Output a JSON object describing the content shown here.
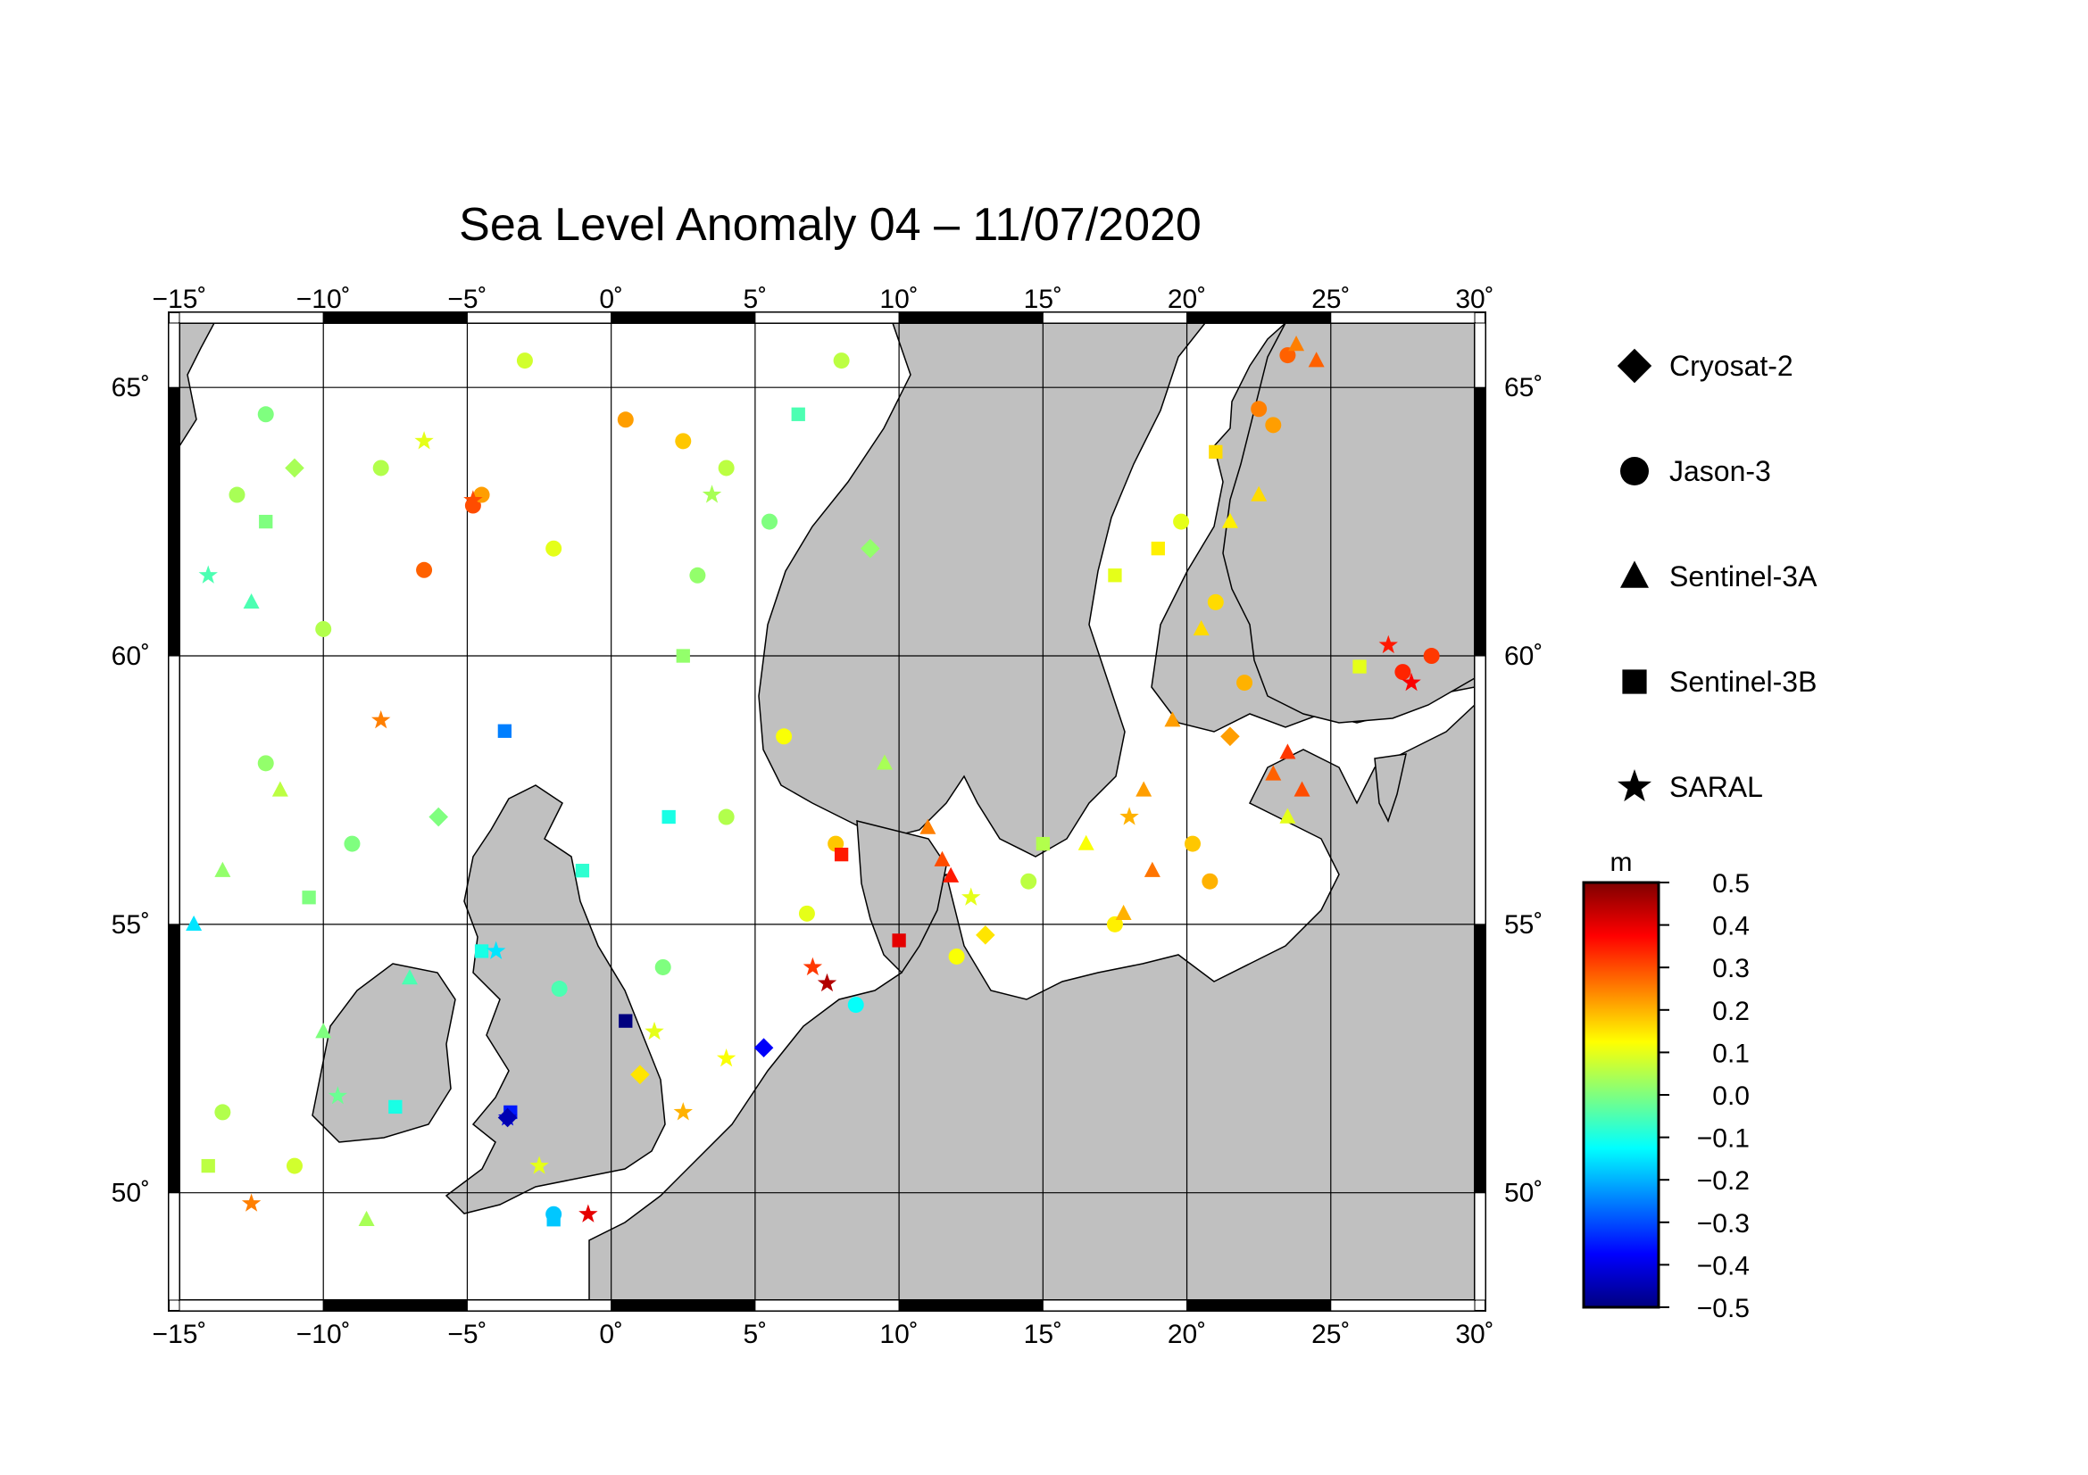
{
  "title": "Sea Level Anomaly 04 – 11/07/2020",
  "map": {
    "lon_range": [
      -15,
      30
    ],
    "lat_range": [
      48,
      66.2
    ],
    "lon_ticks": [
      -15,
      -10,
      -5,
      0,
      5,
      10,
      15,
      20,
      25,
      30
    ],
    "lat_ticks": [
      50,
      55,
      60,
      65
    ],
    "lon_tick_labels": [
      "−15˚",
      "−10˚",
      "−5˚",
      "0˚",
      "5˚",
      "10˚",
      "15˚",
      "20˚",
      "25˚",
      "30˚"
    ],
    "lat_tick_labels": [
      "50˚",
      "55˚",
      "60˚",
      "65˚"
    ],
    "grid": true,
    "land_color": "#c0c0c0",
    "sea_color": "#ffffff"
  },
  "legend": {
    "placement": "right",
    "items": [
      {
        "label": "Cryosat-2",
        "shape": "diamond"
      },
      {
        "label": "Jason-3",
        "shape": "circle"
      },
      {
        "label": "Sentinel-3A",
        "shape": "triangle"
      },
      {
        "label": "Sentinel-3B",
        "shape": "square"
      },
      {
        "label": "SARAL",
        "shape": "star"
      }
    ]
  },
  "colorbar": {
    "unit": "m",
    "min": -0.5,
    "max": 0.5,
    "ticks": [
      0.5,
      0.4,
      0.3,
      0.2,
      0.1,
      0.0,
      -0.1,
      -0.2,
      -0.3,
      -0.4,
      -0.5
    ],
    "tick_labels": [
      "0.5",
      "0.4",
      "0.3",
      "0.2",
      "0.1",
      "0.0",
      "−0.1",
      "−0.2",
      "−0.3",
      "−0.4",
      "−0.5"
    ],
    "colors": [
      "#00007f",
      "#0000ff",
      "#007fff",
      "#00ffff",
      "#7fff7f",
      "#ffff00",
      "#ff7f00",
      "#ff0000",
      "#7f0000"
    ]
  },
  "chart_data": {
    "type": "scatter",
    "title": "Sea Level Anomaly 04 – 11/07/2020",
    "xlabel": "",
    "ylabel": "",
    "xlim": [
      -15,
      30
    ],
    "ylim": [
      48,
      66.2
    ],
    "series": [
      {
        "name": "Jason-3",
        "shape": "circle",
        "points": [
          [
            -4.8,
            62.8,
            0.3
          ],
          [
            -4.5,
            63.0,
            0.22
          ],
          [
            -6.5,
            61.6,
            0.28
          ],
          [
            0.5,
            64.4,
            0.22
          ],
          [
            2.5,
            64.0,
            0.18
          ],
          [
            -12.0,
            64.5,
            0.0
          ],
          [
            -8.0,
            63.5,
            0.05
          ],
          [
            -2.0,
            62.0,
            0.1
          ],
          [
            3.0,
            61.5,
            0.02
          ],
          [
            -10.0,
            60.5,
            0.05
          ],
          [
            -13.0,
            63.0,
            0.04
          ],
          [
            4.0,
            63.5,
            0.06
          ],
          [
            5.5,
            62.5,
            0.0
          ],
          [
            -3.0,
            65.5,
            0.08
          ],
          [
            8.0,
            65.5,
            0.06
          ],
          [
            8.5,
            53.5,
            -0.12
          ],
          [
            27.5,
            59.7,
            0.34
          ],
          [
            28.5,
            60.0,
            0.32
          ],
          [
            23.5,
            65.6,
            0.28
          ],
          [
            23.0,
            64.3,
            0.22
          ],
          [
            22.5,
            64.6,
            0.25
          ],
          [
            19.8,
            62.5,
            0.1
          ],
          [
            21.0,
            61.0,
            0.16
          ],
          [
            22.0,
            59.5,
            0.2
          ],
          [
            20.2,
            56.5,
            0.18
          ],
          [
            20.8,
            55.8,
            0.2
          ],
          [
            17.5,
            55.0,
            0.14
          ],
          [
            12.0,
            54.4,
            0.12
          ],
          [
            -2.0,
            49.6,
            -0.18
          ],
          [
            -1.8,
            53.8,
            -0.05
          ],
          [
            1.8,
            54.2,
            0.0
          ],
          [
            -9.0,
            56.5,
            0.0
          ],
          [
            -12.0,
            58.0,
            0.02
          ],
          [
            4.0,
            57.0,
            0.05
          ],
          [
            6.0,
            58.5,
            0.12
          ],
          [
            -13.5,
            51.5,
            0.05
          ],
          [
            -11.0,
            50.5,
            0.08
          ],
          [
            7.8,
            56.5,
            0.18
          ],
          [
            6.8,
            55.2,
            0.1
          ],
          [
            14.5,
            55.8,
            0.06
          ]
        ]
      },
      {
        "name": "Sentinel-3A",
        "shape": "triangle",
        "points": [
          [
            11.5,
            56.2,
            0.3
          ],
          [
            11.0,
            56.8,
            0.25
          ],
          [
            11.8,
            55.9,
            0.35
          ],
          [
            23.5,
            58.2,
            0.32
          ],
          [
            23.0,
            57.8,
            0.28
          ],
          [
            24.0,
            57.5,
            0.3
          ],
          [
            23.5,
            57.0,
            0.1
          ],
          [
            24.5,
            65.5,
            0.28
          ],
          [
            23.8,
            65.8,
            0.25
          ],
          [
            18.5,
            57.5,
            0.22
          ],
          [
            18.8,
            56.0,
            0.26
          ],
          [
            17.8,
            55.2,
            0.2
          ],
          [
            19.5,
            58.8,
            0.22
          ],
          [
            21.5,
            62.5,
            0.14
          ],
          [
            -14.5,
            55.0,
            -0.15
          ],
          [
            -7.0,
            54.0,
            -0.05
          ],
          [
            -10.0,
            53.0,
            0.0
          ],
          [
            -12.5,
            61.0,
            -0.05
          ],
          [
            -13.5,
            56.0,
            0.02
          ],
          [
            9.5,
            58.0,
            0.04
          ],
          [
            16.5,
            56.5,
            0.12
          ],
          [
            20.5,
            60.5,
            0.16
          ],
          [
            22.5,
            63.0,
            0.16
          ],
          [
            -11.5,
            57.5,
            0.06
          ],
          [
            -8.5,
            49.5,
            0.04
          ]
        ]
      },
      {
        "name": "Sentinel-3B",
        "shape": "square",
        "points": [
          [
            -3.7,
            58.6,
            -0.25
          ],
          [
            -2.0,
            49.5,
            -0.18
          ],
          [
            0.5,
            53.2,
            -0.5
          ],
          [
            10.0,
            54.7,
            0.4
          ],
          [
            8.0,
            56.3,
            0.35
          ],
          [
            -3.5,
            51.5,
            -0.35
          ],
          [
            -7.5,
            51.6,
            -0.1
          ],
          [
            -12.0,
            62.5,
            0.0
          ],
          [
            2.0,
            57.0,
            -0.1
          ],
          [
            -1.0,
            56.0,
            -0.08
          ],
          [
            6.5,
            64.5,
            -0.05
          ],
          [
            2.5,
            60.0,
            0.02
          ],
          [
            -4.5,
            54.5,
            -0.1
          ],
          [
            15.0,
            56.5,
            0.05
          ],
          [
            17.5,
            61.5,
            0.1
          ],
          [
            21.0,
            63.8,
            0.16
          ],
          [
            19.0,
            62.0,
            0.14
          ],
          [
            26.0,
            59.8,
            0.1
          ],
          [
            -14.0,
            50.5,
            0.06
          ],
          [
            -10.5,
            55.5,
            0.0
          ]
        ]
      },
      {
        "name": "SARAL",
        "shape": "star",
        "points": [
          [
            -0.8,
            49.6,
            0.4
          ],
          [
            7.5,
            53.9,
            0.45
          ],
          [
            7.0,
            54.2,
            0.32
          ],
          [
            27.0,
            60.2,
            0.35
          ],
          [
            27.8,
            59.5,
            0.38
          ],
          [
            -4.8,
            62.9,
            0.3
          ],
          [
            -8.0,
            58.8,
            0.25
          ],
          [
            -3.6,
            51.4,
            -0.4
          ],
          [
            -4.0,
            54.5,
            -0.15
          ],
          [
            4.0,
            52.5,
            0.12
          ],
          [
            1.5,
            53.0,
            0.1
          ],
          [
            2.5,
            51.5,
            0.2
          ],
          [
            -12.5,
            49.8,
            0.25
          ],
          [
            -14.0,
            61.5,
            -0.05
          ],
          [
            3.5,
            63.0,
            0.04
          ],
          [
            -6.5,
            64.0,
            0.1
          ],
          [
            12.5,
            55.5,
            0.1
          ],
          [
            18.0,
            57.0,
            0.2
          ],
          [
            -9.5,
            51.8,
            -0.02
          ],
          [
            -2.5,
            50.5,
            0.1
          ]
        ]
      },
      {
        "name": "Cryosat-2",
        "shape": "diamond",
        "points": [
          [
            5.3,
            52.7,
            -0.38
          ],
          [
            -3.6,
            51.4,
            -0.45
          ],
          [
            1.0,
            52.2,
            0.15
          ],
          [
            -6.0,
            57.0,
            0.0
          ],
          [
            9.0,
            62.0,
            0.02
          ],
          [
            21.5,
            58.5,
            0.22
          ],
          [
            13.0,
            54.8,
            0.15
          ],
          [
            -11.0,
            63.5,
            0.04
          ]
        ]
      }
    ]
  }
}
